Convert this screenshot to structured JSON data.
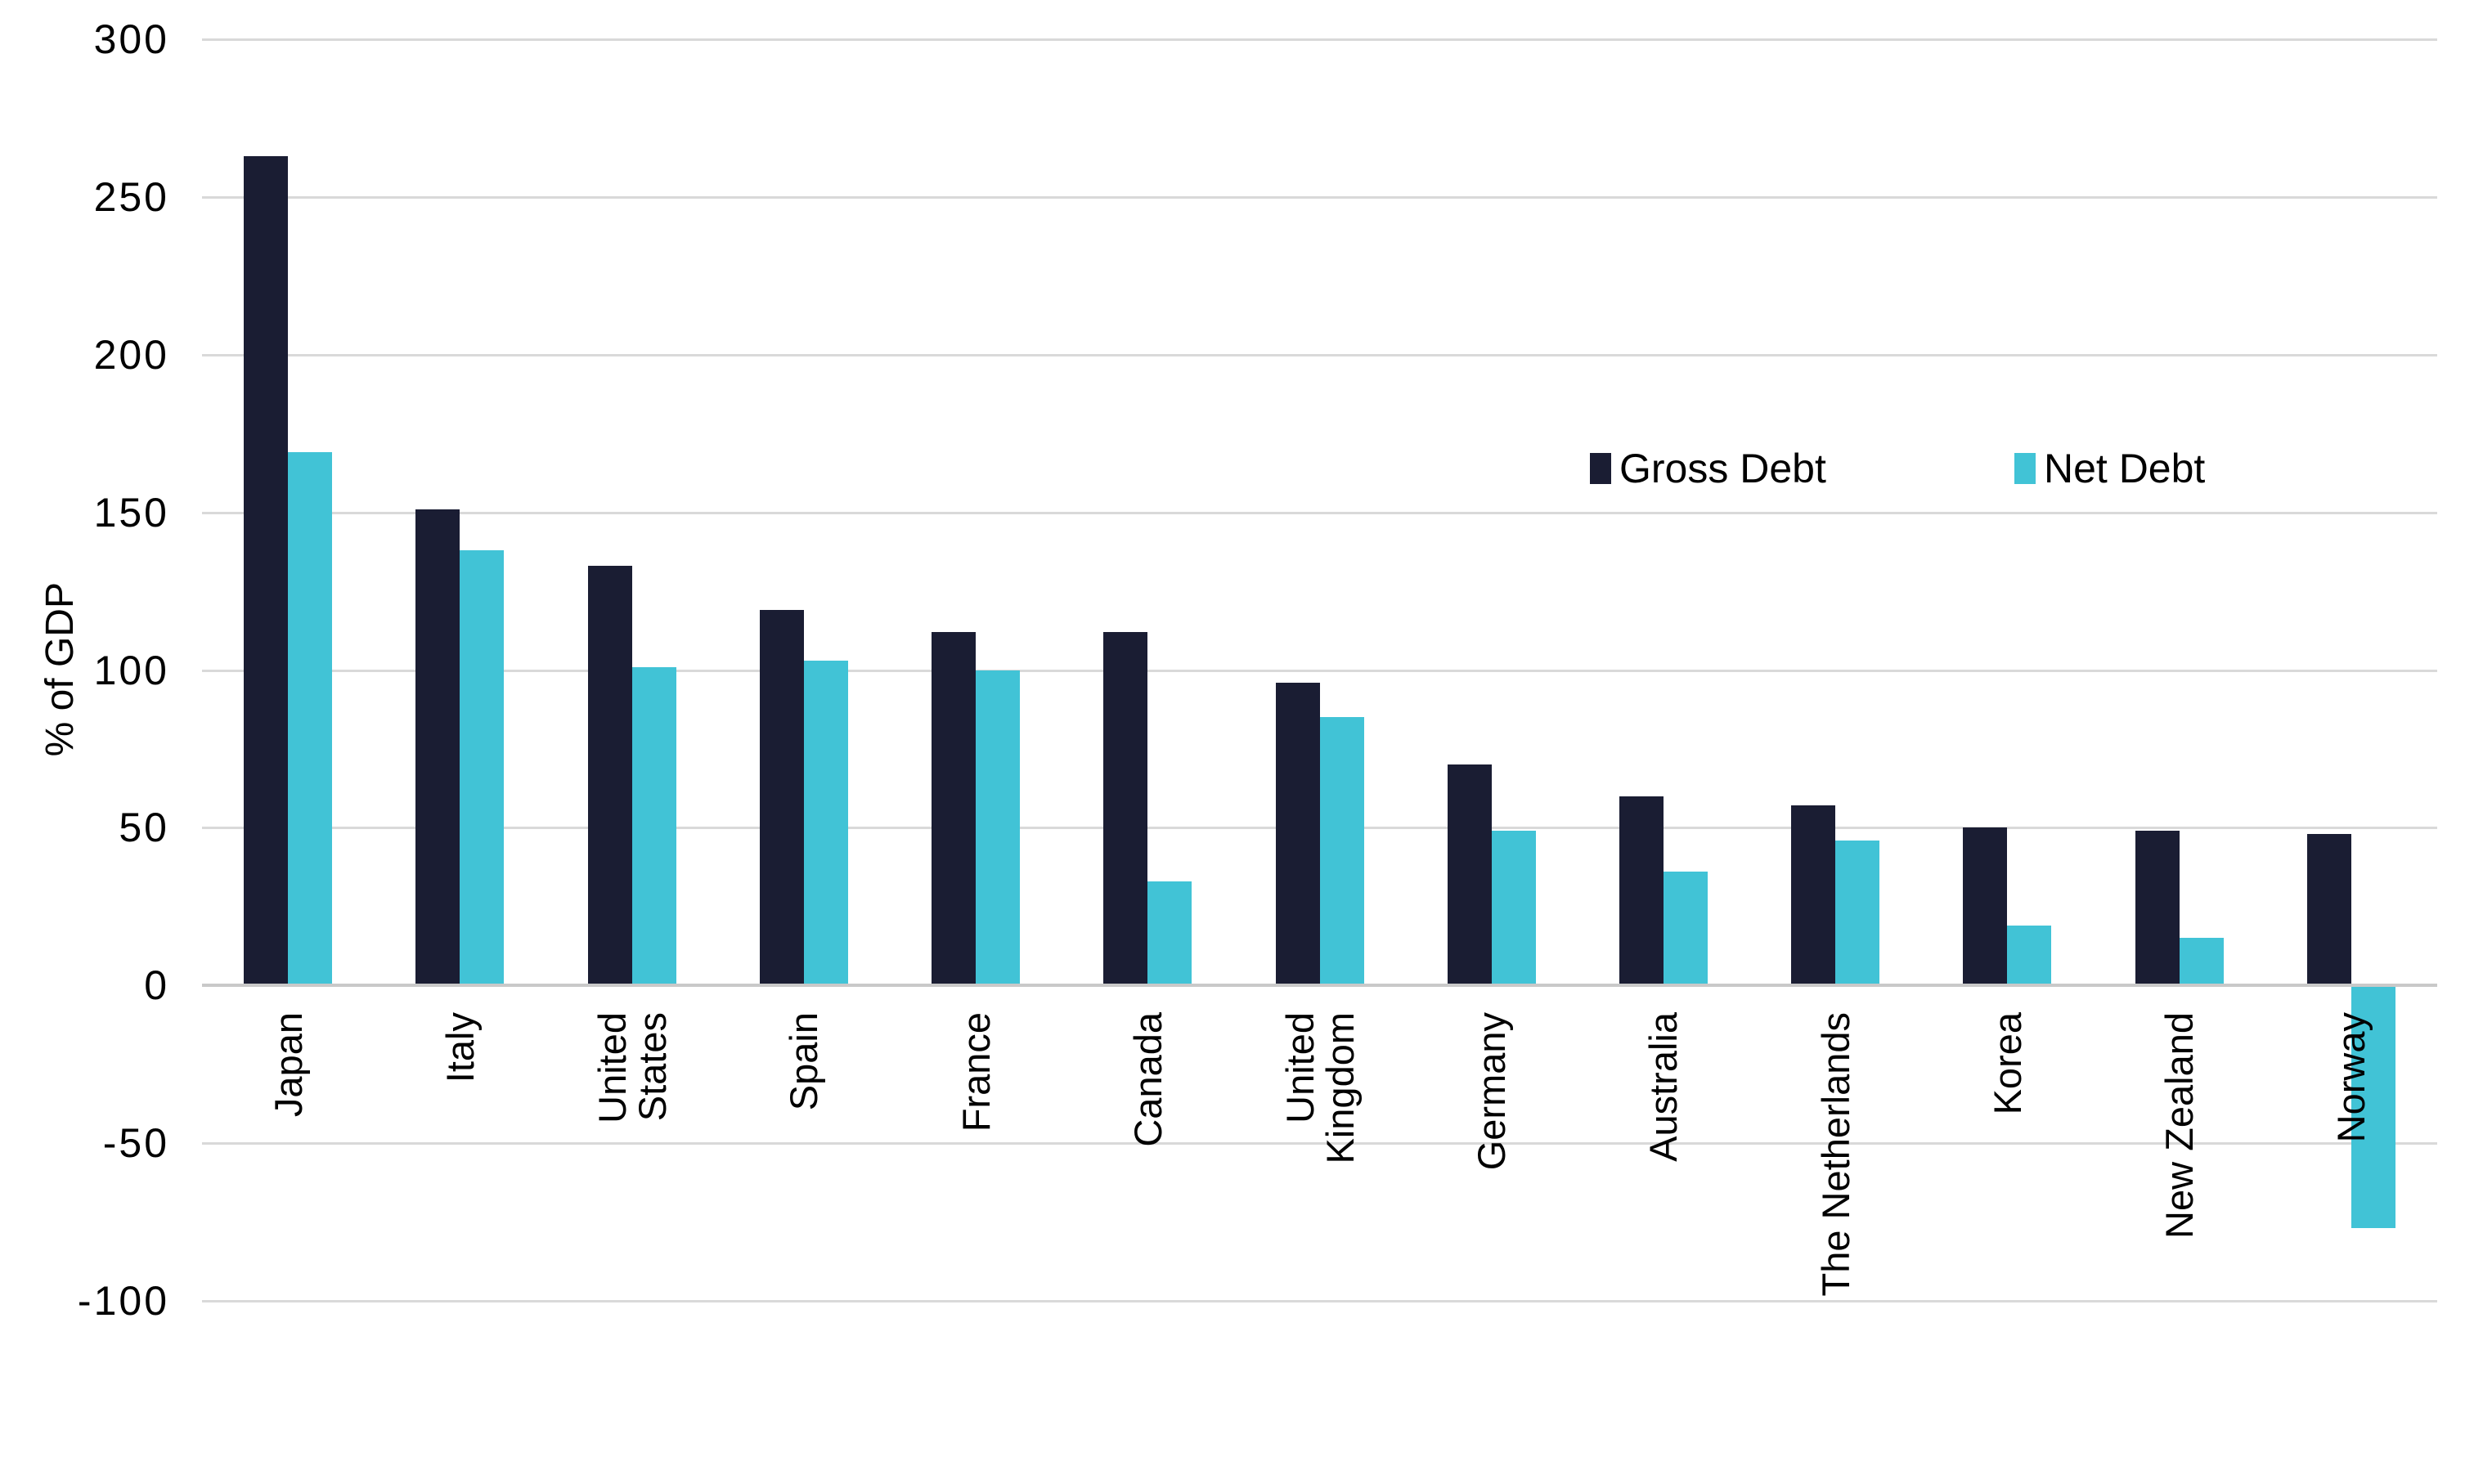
{
  "chart_data": {
    "type": "bar",
    "title": "",
    "xlabel": "",
    "ylabel": "% of GDP",
    "ylim": [
      -100,
      300
    ],
    "yticks": [
      300,
      250,
      200,
      150,
      100,
      50,
      0,
      -50,
      -100
    ],
    "grid": true,
    "legend_position": "inside-upper-right",
    "categories": [
      "Japan",
      "Italy",
      "United States",
      "Spain",
      "France",
      "Canada",
      "United Kingdom",
      "Germany",
      "Australia",
      "The Netherlands",
      "Korea",
      "New Zealand",
      "Norway"
    ],
    "category_lines": [
      [
        "Japan"
      ],
      [
        "Italy"
      ],
      [
        "United",
        "States"
      ],
      [
        "Spain"
      ],
      [
        "France"
      ],
      [
        "Canada"
      ],
      [
        "United",
        "Kingdom"
      ],
      [
        "Germany"
      ],
      [
        "Australia"
      ],
      [
        "The Netherlands"
      ],
      [
        "Korea"
      ],
      [
        "New Zealand"
      ],
      [
        "Norway"
      ]
    ],
    "series": [
      {
        "name": "Gross Debt",
        "values": [
          263,
          151,
          133,
          119,
          112,
          112,
          96,
          70,
          60,
          57,
          50,
          49,
          48
        ]
      },
      {
        "name": "Net Debt",
        "values": [
          169,
          138,
          101,
          103,
          100,
          33,
          85,
          49,
          36,
          46,
          19,
          15,
          -77
        ]
      }
    ]
  },
  "legend": {
    "gross_label": "Gross Debt",
    "net_label": "Net Debt"
  },
  "axis": {
    "y_title": "% of GDP"
  },
  "colors": {
    "gross": "#1a1d33",
    "net": "#41c3d6",
    "gridline": "#d9d9d9",
    "zeroline": "#c9c9c9",
    "text": "#000000",
    "background": "#ffffff"
  }
}
